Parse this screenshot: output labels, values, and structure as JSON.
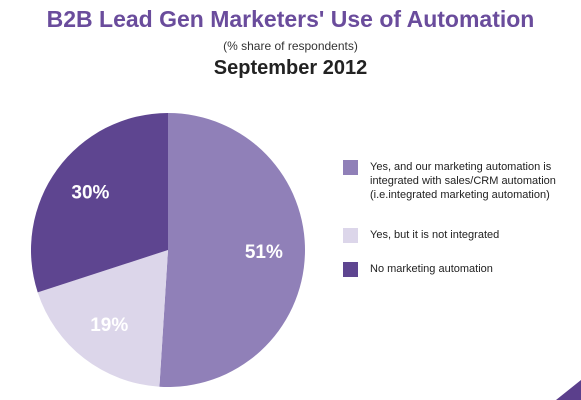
{
  "chart_data": {
    "type": "pie",
    "title": "B2B Lead Gen Marketers' Use of Automation",
    "subtitle": "(% share of respondents)",
    "date_label": "September 2012",
    "slices": [
      {
        "label": "Yes, and our marketing automation is integrated with sales/CRM automation (i.e.integrated marketing automation)",
        "value": 51,
        "display": "51%",
        "color": "#9080b8"
      },
      {
        "label": "Yes, but it is not integrated",
        "value": 19,
        "display": "19%",
        "color": "#dcd6ea"
      },
      {
        "label": "No marketing automation",
        "value": 30,
        "display": "30%",
        "color": "#5e4590"
      }
    ],
    "legend_position": "right"
  }
}
